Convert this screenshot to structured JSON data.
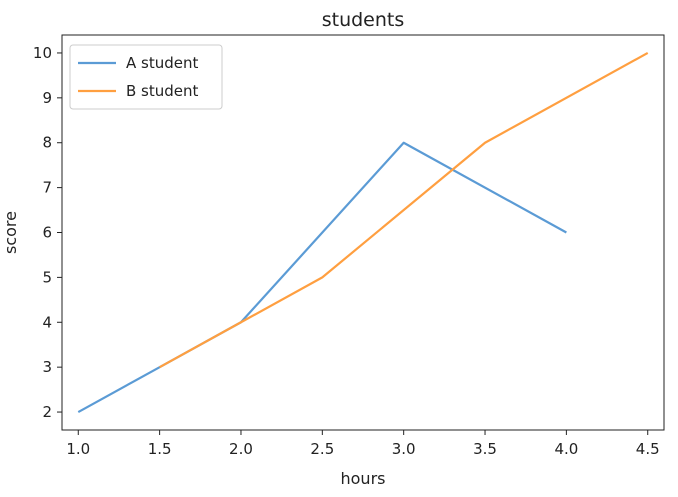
{
  "chart_data": {
    "type": "line",
    "title": "students",
    "xlabel": "hours",
    "ylabel": "score",
    "xlim": [
      0.9,
      4.6
    ],
    "ylim": [
      1.6,
      10.4
    ],
    "xticks": [
      1.0,
      1.5,
      2.0,
      2.5,
      3.0,
      3.5,
      4.0,
      4.5
    ],
    "xtick_labels": [
      "1.0",
      "1.5",
      "2.0",
      "2.5",
      "3.0",
      "3.5",
      "4.0",
      "4.5"
    ],
    "yticks": [
      2,
      3,
      4,
      5,
      6,
      7,
      8,
      9,
      10
    ],
    "ytick_labels": [
      "2",
      "3",
      "4",
      "5",
      "6",
      "7",
      "8",
      "9",
      "10"
    ],
    "grid": false,
    "legend_position": "top-left",
    "series": [
      {
        "name": "A student",
        "color": "#5b9bd5",
        "x": [
          1.0,
          1.5,
          2.0,
          3.0,
          4.0
        ],
        "y": [
          2,
          3,
          4,
          8,
          6
        ]
      },
      {
        "name": "B student",
        "color": "#ff9f40",
        "x": [
          1.5,
          2.0,
          2.5,
          3.5,
          4.5
        ],
        "y": [
          3,
          4,
          5,
          8,
          10
        ]
      }
    ]
  }
}
